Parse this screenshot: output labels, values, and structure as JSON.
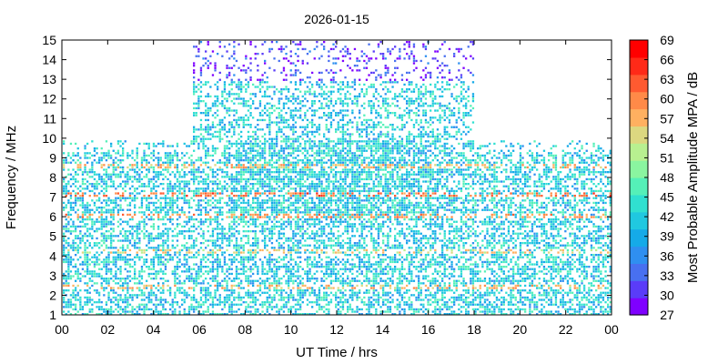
{
  "chart_data": {
    "type": "heatmap",
    "title": "2026-01-15",
    "xlabel": "UT Time / hrs",
    "ylabel": "Frequency / MHz",
    "xlim": [
      0,
      24
    ],
    "ylim": [
      1,
      15
    ],
    "x_ticks": [
      "00",
      "02",
      "04",
      "06",
      "08",
      "10",
      "12",
      "14",
      "16",
      "18",
      "20",
      "22",
      "00"
    ],
    "y_ticks": [
      "1",
      "2",
      "3",
      "4",
      "5",
      "6",
      "7",
      "8",
      "9",
      "10",
      "11",
      "12",
      "13",
      "14",
      "15"
    ],
    "colorbar": {
      "label": "Most Probable Amplitude MPA / dB",
      "min": 27,
      "max": 69,
      "ticks": [
        "27",
        "30",
        "33",
        "36",
        "39",
        "42",
        "45",
        "48",
        "51",
        "54",
        "57",
        "60",
        "63",
        "66",
        "69"
      ],
      "colors": [
        "#7f00ff",
        "#5a3cf8",
        "#4870f0",
        "#2f8ff0",
        "#15aae8",
        "#20c8e0",
        "#30e0d0",
        "#55f0b8",
        "#8af5a0",
        "#b8f090",
        "#dcd880",
        "#ffb060",
        "#ff8a48",
        "#ff5a30",
        "#ff2a18",
        "#ff0000"
      ]
    },
    "day_band": {
      "start_hr": 5.7,
      "end_hr": 18.0,
      "max_freq_mhz": 15
    },
    "night_max_freq_mhz": 10,
    "typical_mpa_db": [
      36,
      48
    ],
    "strong_lines": [
      {
        "freq_mhz": 2.5,
        "mpa_db": 60
      },
      {
        "freq_mhz": 4.3,
        "mpa_db": 58
      },
      {
        "freq_mhz": 6.1,
        "mpa_db": 62
      },
      {
        "freq_mhz": 7.2,
        "mpa_db": 64
      },
      {
        "freq_mhz": 8.6,
        "mpa_db": 60
      }
    ]
  }
}
